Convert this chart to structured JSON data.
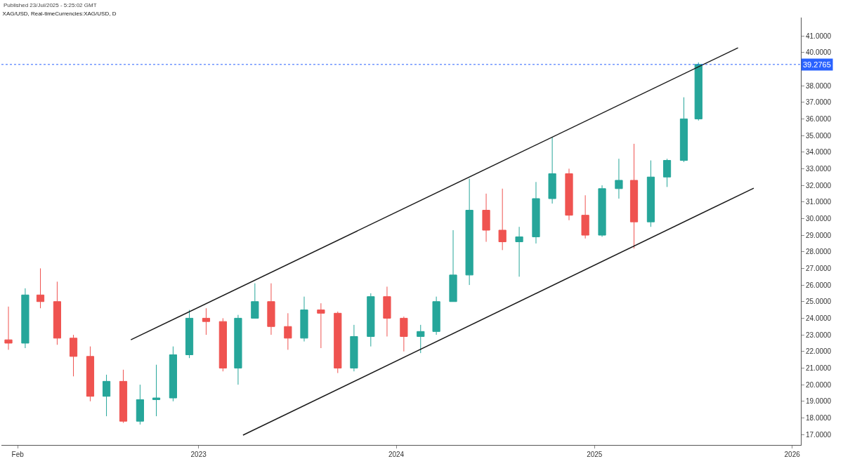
{
  "chart_data": {
    "type": "candlestick",
    "title": "XAG/USD, Real-timeCurrencies:XAG/USD, D",
    "annotations": [
      "Published 23/Jul/2025 - 5:25:02 GMT"
    ],
    "x": [
      "2022-01-15",
      "2022-02-15",
      "2022-03-15",
      "2022-04-15",
      "2022-05-15",
      "2022-06-15",
      "2022-07-15",
      "2022-08-15",
      "2022-09-15",
      "2022-10-15",
      "2022-11-15",
      "2022-12-15",
      "2023-01-15",
      "2023-02-15",
      "2023-03-15",
      "2023-04-15",
      "2023-05-15",
      "2023-06-15",
      "2023-07-15",
      "2023-08-15",
      "2023-09-15",
      "2023-10-15",
      "2023-11-15",
      "2023-12-15",
      "2024-01-15",
      "2024-02-15",
      "2024-03-15",
      "2024-04-15",
      "2024-05-15",
      "2024-06-15",
      "2024-07-15",
      "2024-08-15",
      "2024-09-15",
      "2024-10-15",
      "2024-11-15",
      "2024-12-15",
      "2025-01-15",
      "2025-02-15",
      "2025-03-15",
      "2025-04-15",
      "2025-05-15",
      "2025-06-15",
      "2025-07-12"
    ],
    "ohlc": [
      [
        22.7,
        24.7,
        22.1,
        22.5
      ],
      [
        22.5,
        25.8,
        22.2,
        25.4
      ],
      [
        25.4,
        27.0,
        24.6,
        25.0
      ],
      [
        25.0,
        26.2,
        22.4,
        22.8
      ],
      [
        22.8,
        23.0,
        20.5,
        21.7
      ],
      [
        21.7,
        22.3,
        19.0,
        19.3
      ],
      [
        19.3,
        20.6,
        18.1,
        20.2
      ],
      [
        20.2,
        20.9,
        17.7,
        17.8
      ],
      [
        17.8,
        20.0,
        17.6,
        19.1
      ],
      [
        19.1,
        21.2,
        18.1,
        19.2
      ],
      [
        19.2,
        22.3,
        19.0,
        21.8
      ],
      [
        21.8,
        24.5,
        21.6,
        24.0
      ],
      [
        24.0,
        24.6,
        23.0,
        23.8
      ],
      [
        23.8,
        24.0,
        20.8,
        21.0
      ],
      [
        21.0,
        24.2,
        20.0,
        24.0
      ],
      [
        24.0,
        26.1,
        24.0,
        25.0
      ],
      [
        25.0,
        26.1,
        23.0,
        23.5
      ],
      [
        23.5,
        24.3,
        22.1,
        22.8
      ],
      [
        22.8,
        25.3,
        22.6,
        24.5
      ],
      [
        24.5,
        24.9,
        22.2,
        24.3
      ],
      [
        24.3,
        24.4,
        20.7,
        21.0
      ],
      [
        21.0,
        23.6,
        20.8,
        22.9
      ],
      [
        22.9,
        25.5,
        22.3,
        25.3
      ],
      [
        25.3,
        25.9,
        22.9,
        24.0
      ],
      [
        24.0,
        24.1,
        22.0,
        22.9
      ],
      [
        22.9,
        23.6,
        21.9,
        23.2
      ],
      [
        23.2,
        25.3,
        23.0,
        25.0
      ],
      [
        25.0,
        29.3,
        25.0,
        26.6
      ],
      [
        26.6,
        32.4,
        26.0,
        30.5
      ],
      [
        30.5,
        31.5,
        28.6,
        29.3
      ],
      [
        29.3,
        31.8,
        28.1,
        28.6
      ],
      [
        28.6,
        29.5,
        26.5,
        28.9
      ],
      [
        28.9,
        32.2,
        28.5,
        31.2
      ],
      [
        31.2,
        34.9,
        30.9,
        32.7
      ],
      [
        32.7,
        33.0,
        29.9,
        30.2
      ],
      [
        30.2,
        31.4,
        28.8,
        29.0
      ],
      [
        29.0,
        32.0,
        28.9,
        31.8
      ],
      [
        31.8,
        33.6,
        31.2,
        32.3
      ],
      [
        32.3,
        34.5,
        28.2,
        29.8
      ],
      [
        29.8,
        33.5,
        29.5,
        32.5
      ],
      [
        32.5,
        33.6,
        31.9,
        33.5
      ],
      [
        33.5,
        37.3,
        33.4,
        36.0
      ],
      [
        36.0,
        39.4,
        35.9,
        39.2765
      ]
    ],
    "colors": [
      "#ef5350",
      "#26a69a",
      "#ef5350",
      "#ef5350",
      "#ef5350",
      "#ef5350",
      "#26a69a",
      "#ef5350",
      "#26a69a",
      "#26a69a",
      "#26a69a",
      "#26a69a",
      "#ef5350",
      "#ef5350",
      "#26a69a",
      "#26a69a",
      "#ef5350",
      "#ef5350",
      "#26a69a",
      "#ef5350",
      "#ef5350",
      "#26a69a",
      "#26a69a",
      "#ef5350",
      "#ef5350",
      "#26a69a",
      "#26a69a",
      "#26a69a",
      "#26a69a",
      "#ef5350",
      "#ef5350",
      "#26a69a",
      "#26a69a",
      "#26a69a",
      "#ef5350",
      "#ef5350",
      "#26a69a",
      "#26a69a",
      "#ef5350",
      "#26a69a",
      "#26a69a",
      "#26a69a",
      "#26a69a"
    ],
    "series": [
      {
        "type": "line",
        "x": [
          "2022-08-29",
          "2025-09-23"
        ],
        "values": [
          22.7,
          40.28
        ],
        "color": "#1a1a1a"
      },
      {
        "type": "line",
        "x": [
          "2023-03-24",
          "2025-10-22"
        ],
        "values": [
          16.96,
          31.83
        ],
        "color": "#1a1a1a"
      }
    ],
    "ref_lines": [
      {
        "axis": "y",
        "value": 39.2765,
        "label": "39.2765",
        "color": "#2962ff",
        "line_style": "dotted"
      }
    ],
    "xlim": [
      "2022-01-02",
      "2026-01-17"
    ],
    "xticks": [
      {
        "value": "2022-02-01",
        "label": "Feb"
      },
      {
        "value": "2023-01-01",
        "label": "2023"
      },
      {
        "value": "2024-01-01",
        "label": "2024"
      },
      {
        "value": "2025-01-01",
        "label": "2025"
      },
      {
        "value": "2026-01-01",
        "label": "2026"
      }
    ],
    "ylim": [
      16.37,
      42.1
    ],
    "yticks": [
      {
        "value": 17,
        "label": "17.0000"
      },
      {
        "value": 18,
        "label": "18.0000"
      },
      {
        "value": 19,
        "label": "19.0000"
      },
      {
        "value": 20,
        "label": "20.0000"
      },
      {
        "value": 21,
        "label": "21.0000"
      },
      {
        "value": 22,
        "label": "22.0000"
      },
      {
        "value": 23,
        "label": "23.0000"
      },
      {
        "value": 24,
        "label": "24.0000"
      },
      {
        "value": 25,
        "label": "25.0000"
      },
      {
        "value": 26,
        "label": "26.0000"
      },
      {
        "value": 27,
        "label": "27.0000"
      },
      {
        "value": 28,
        "label": "28.0000"
      },
      {
        "value": 29,
        "label": "29.0000"
      },
      {
        "value": 30,
        "label": "30.0000"
      },
      {
        "value": 31,
        "label": "31.0000"
      },
      {
        "value": 32,
        "label": "32.0000"
      },
      {
        "value": 33,
        "label": "33.0000"
      },
      {
        "value": 34,
        "label": "34.0000"
      },
      {
        "value": 35,
        "label": "35.0000"
      },
      {
        "value": 36,
        "label": "36.0000"
      },
      {
        "value": 37,
        "label": "37.0000"
      },
      {
        "value": 38,
        "label": "38.0000"
      },
      {
        "value": 39,
        "label": null
      },
      {
        "value": 40,
        "label": "40.0000"
      },
      {
        "value": 41,
        "label": "41.0000"
      }
    ]
  }
}
